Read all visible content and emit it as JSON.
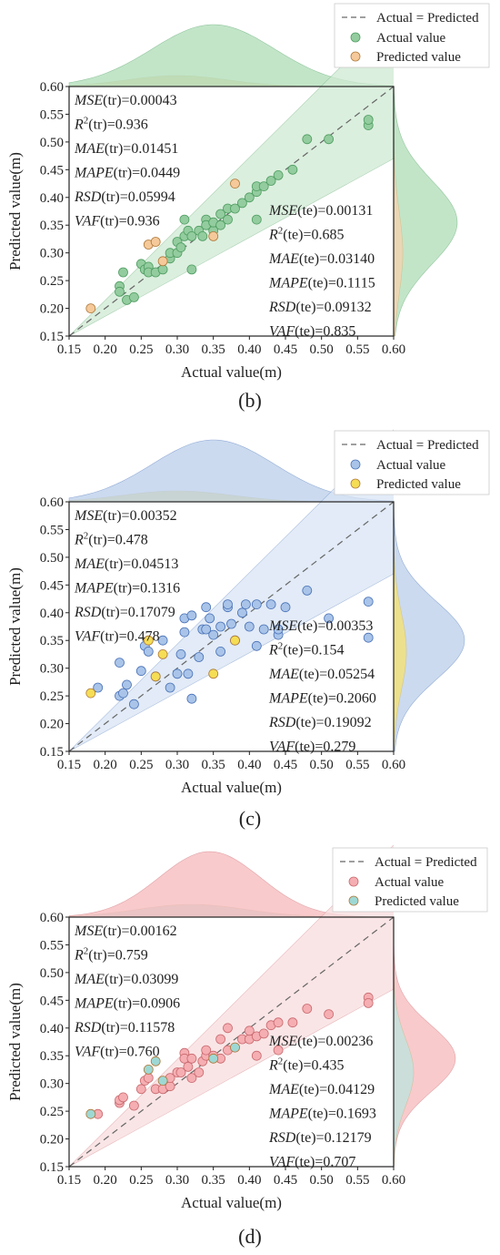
{
  "chart_data": [
    {
      "panel": "(b)",
      "type": "scatter",
      "xlabel": "Actual value(m)",
      "ylabel": "Predicted value(m)",
      "xlim": [
        0.15,
        0.6
      ],
      "ylim": [
        0.15,
        0.6
      ],
      "ticks": [
        "0.15",
        "0.20",
        "0.25",
        "0.30",
        "0.35",
        "0.40",
        "0.45",
        "0.50",
        "0.55",
        "0.60"
      ],
      "legend": {
        "placement": "top-right",
        "line": "Actual = Predicted",
        "s1": "Actual value",
        "s2": "Predicted value"
      },
      "colors": {
        "s1": "#93cc9e",
        "s2": "#f5c99a",
        "band": "#cfe9d3",
        "top1": "#aedcb5",
        "top2": "#f2d3b0",
        "side1": "#aedcb5",
        "side2": "#f2d3b0",
        "edge": "#4f9d62"
      },
      "metrics_tr": [
        "0.00043",
        "0.936",
        "0.01451",
        "0.0449",
        "0.05994",
        "0.936"
      ],
      "metrics_te": [
        "0.00131",
        "0.685",
        "0.03140",
        "0.1115",
        "0.09132",
        "0.835"
      ],
      "series": [
        {
          "name": "Actual value",
          "points": [
            [
              0.22,
              0.24
            ],
            [
              0.22,
              0.23
            ],
            [
              0.225,
              0.265
            ],
            [
              0.23,
              0.215
            ],
            [
              0.24,
              0.22
            ],
            [
              0.25,
              0.28
            ],
            [
              0.255,
              0.27
            ],
            [
              0.26,
              0.275
            ],
            [
              0.26,
              0.265
            ],
            [
              0.27,
              0.265
            ],
            [
              0.28,
              0.27
            ],
            [
              0.29,
              0.29
            ],
            [
              0.29,
              0.3
            ],
            [
              0.3,
              0.32
            ],
            [
              0.3,
              0.3
            ],
            [
              0.305,
              0.31
            ],
            [
              0.31,
              0.33
            ],
            [
              0.31,
              0.36
            ],
            [
              0.315,
              0.34
            ],
            [
              0.32,
              0.27
            ],
            [
              0.32,
              0.33
            ],
            [
              0.33,
              0.34
            ],
            [
              0.335,
              0.33
            ],
            [
              0.34,
              0.36
            ],
            [
              0.34,
              0.35
            ],
            [
              0.35,
              0.34
            ],
            [
              0.35,
              0.355
            ],
            [
              0.36,
              0.37
            ],
            [
              0.36,
              0.35
            ],
            [
              0.37,
              0.38
            ],
            [
              0.37,
              0.36
            ],
            [
              0.38,
              0.38
            ],
            [
              0.39,
              0.39
            ],
            [
              0.4,
              0.4
            ],
            [
              0.41,
              0.41
            ],
            [
              0.41,
              0.42
            ],
            [
              0.41,
              0.36
            ],
            [
              0.42,
              0.42
            ],
            [
              0.43,
              0.43
            ],
            [
              0.44,
              0.44
            ],
            [
              0.46,
              0.45
            ],
            [
              0.48,
              0.505
            ],
            [
              0.51,
              0.505
            ],
            [
              0.565,
              0.53
            ],
            [
              0.565,
              0.54
            ]
          ]
        },
        {
          "name": "Predicted value",
          "points": [
            [
              0.18,
              0.2
            ],
            [
              0.26,
              0.315
            ],
            [
              0.27,
              0.32
            ],
            [
              0.28,
              0.285
            ],
            [
              0.35,
              0.33
            ],
            [
              0.38,
              0.425
            ]
          ]
        }
      ],
      "density_top": {
        "mu1": 0.35,
        "sd1": 0.085,
        "mu2": 0.3,
        "sd2": 0.07,
        "peak1": 68,
        "peak2": 12
      },
      "density_side": {
        "mu1": 0.355,
        "sd1": 0.075,
        "mu2": 0.3,
        "sd2": 0.075,
        "peak1": 70,
        "peak2": 10
      }
    },
    {
      "panel": "(c)",
      "type": "scatter",
      "xlabel": "Actual value(m)",
      "ylabel": "Predicted value(m)",
      "xlim": [
        0.15,
        0.6
      ],
      "ylim": [
        0.15,
        0.6
      ],
      "ticks": [
        "0.15",
        "0.20",
        "0.25",
        "0.30",
        "0.35",
        "0.40",
        "0.45",
        "0.50",
        "0.55",
        "0.60"
      ],
      "legend": {
        "placement": "top-right",
        "line": "Actual = Predicted",
        "s1": "Actual value",
        "s2": "Predicted value"
      },
      "colors": {
        "s1": "#a9c4e8",
        "s2": "#f5dd55",
        "band": "#d8e4f4",
        "top1": "#b9cdea",
        "top2": "#f2e07a",
        "side1": "#b9cdea",
        "side2": "#f2e07a",
        "edge": "#4a72b8"
      },
      "metrics_tr": [
        "0.00352",
        "0.478",
        "0.04513",
        "0.1316",
        "0.17079",
        "0.478"
      ],
      "metrics_te": [
        "0.00353",
        "0.154",
        "0.05254",
        "0.2060",
        "0.19092",
        "0.279"
      ],
      "series": [
        {
          "name": "Actual value",
          "points": [
            [
              0.19,
              0.265
            ],
            [
              0.22,
              0.31
            ],
            [
              0.22,
              0.25
            ],
            [
              0.225,
              0.255
            ],
            [
              0.23,
              0.27
            ],
            [
              0.24,
              0.235
            ],
            [
              0.25,
              0.295
            ],
            [
              0.255,
              0.34
            ],
            [
              0.26,
              0.33
            ],
            [
              0.27,
              0.285
            ],
            [
              0.28,
              0.35
            ],
            [
              0.29,
              0.265
            ],
            [
              0.3,
              0.29
            ],
            [
              0.305,
              0.325
            ],
            [
              0.31,
              0.39
            ],
            [
              0.31,
              0.365
            ],
            [
              0.315,
              0.29
            ],
            [
              0.32,
              0.245
            ],
            [
              0.32,
              0.395
            ],
            [
              0.33,
              0.32
            ],
            [
              0.335,
              0.37
            ],
            [
              0.34,
              0.41
            ],
            [
              0.34,
              0.37
            ],
            [
              0.345,
              0.39
            ],
            [
              0.35,
              0.36
            ],
            [
              0.36,
              0.33
            ],
            [
              0.36,
              0.375
            ],
            [
              0.37,
              0.41
            ],
            [
              0.37,
              0.415
            ],
            [
              0.375,
              0.38
            ],
            [
              0.38,
              0.35
            ],
            [
              0.39,
              0.4
            ],
            [
              0.395,
              0.415
            ],
            [
              0.4,
              0.375
            ],
            [
              0.41,
              0.415
            ],
            [
              0.41,
              0.34
            ],
            [
              0.42,
              0.37
            ],
            [
              0.43,
              0.415
            ],
            [
              0.44,
              0.36
            ],
            [
              0.44,
              0.37
            ],
            [
              0.45,
              0.41
            ],
            [
              0.48,
              0.44
            ],
            [
              0.51,
              0.39
            ],
            [
              0.565,
              0.42
            ],
            [
              0.565,
              0.355
            ]
          ]
        },
        {
          "name": "Predicted value",
          "points": [
            [
              0.18,
              0.255
            ],
            [
              0.26,
              0.35
            ],
            [
              0.27,
              0.285
            ],
            [
              0.28,
              0.325
            ],
            [
              0.35,
              0.29
            ],
            [
              0.38,
              0.35
            ]
          ]
        }
      ],
      "density_top": {
        "mu1": 0.35,
        "sd1": 0.085,
        "mu2": 0.3,
        "sd2": 0.075,
        "peak1": 68,
        "peak2": 12
      },
      "density_side": {
        "mu1": 0.35,
        "sd1": 0.07,
        "mu2": 0.33,
        "sd2": 0.07,
        "peak1": 78,
        "peak2": 14
      }
    },
    {
      "panel": "(d)",
      "type": "scatter",
      "xlabel": "Actual value(m)",
      "ylabel": "Predicted value(m)",
      "xlim": [
        0.15,
        0.6
      ],
      "ylim": [
        0.15,
        0.6
      ],
      "ticks": [
        "0.15",
        "0.20",
        "0.25",
        "0.30",
        "0.35",
        "0.40",
        "0.45",
        "0.50",
        "0.55",
        "0.60"
      ],
      "legend": {
        "placement": "top-right",
        "line": "Actual = Predicted",
        "s1": "Actual value",
        "s2": "Predicted value"
      },
      "colors": {
        "s1": "#f5aeb2",
        "s2": "#9ed8d4",
        "band": "#f8dcdd",
        "top1": "#f6b8bb",
        "top2": "#c3e2dc",
        "side1": "#f6b8bb",
        "side2": "#c3e2dc",
        "edge": "#c86a6f"
      },
      "metrics_tr": [
        "0.00162",
        "0.759",
        "0.03099",
        "0.0906",
        "0.11578",
        "0.760"
      ],
      "metrics_te": [
        "0.00236",
        "0.435",
        "0.04129",
        "0.1693",
        "0.12179",
        "0.707"
      ],
      "series": [
        {
          "name": "Actual value",
          "points": [
            [
              0.19,
              0.245
            ],
            [
              0.22,
              0.265
            ],
            [
              0.22,
              0.27
            ],
            [
              0.225,
              0.275
            ],
            [
              0.24,
              0.26
            ],
            [
              0.25,
              0.29
            ],
            [
              0.255,
              0.305
            ],
            [
              0.26,
              0.31
            ],
            [
              0.27,
              0.29
            ],
            [
              0.28,
              0.29
            ],
            [
              0.29,
              0.295
            ],
            [
              0.29,
              0.31
            ],
            [
              0.3,
              0.32
            ],
            [
              0.305,
              0.32
            ],
            [
              0.31,
              0.355
            ],
            [
              0.31,
              0.345
            ],
            [
              0.315,
              0.33
            ],
            [
              0.32,
              0.31
            ],
            [
              0.32,
              0.345
            ],
            [
              0.33,
              0.32
            ],
            [
              0.335,
              0.34
            ],
            [
              0.34,
              0.35
            ],
            [
              0.34,
              0.36
            ],
            [
              0.35,
              0.35
            ],
            [
              0.36,
              0.345
            ],
            [
              0.36,
              0.38
            ],
            [
              0.37,
              0.36
            ],
            [
              0.37,
              0.4
            ],
            [
              0.38,
              0.365
            ],
            [
              0.39,
              0.38
            ],
            [
              0.4,
              0.38
            ],
            [
              0.4,
              0.395
            ],
            [
              0.41,
              0.385
            ],
            [
              0.41,
              0.35
            ],
            [
              0.42,
              0.39
            ],
            [
              0.43,
              0.405
            ],
            [
              0.44,
              0.36
            ],
            [
              0.44,
              0.41
            ],
            [
              0.46,
              0.41
            ],
            [
              0.48,
              0.435
            ],
            [
              0.51,
              0.425
            ],
            [
              0.565,
              0.455
            ],
            [
              0.565,
              0.445
            ]
          ]
        },
        {
          "name": "Predicted value",
          "points": [
            [
              0.18,
              0.245
            ],
            [
              0.26,
              0.325
            ],
            [
              0.27,
              0.34
            ],
            [
              0.28,
              0.305
            ],
            [
              0.35,
              0.345
            ],
            [
              0.38,
              0.365
            ]
          ]
        }
      ],
      "density_top": {
        "mu1": 0.345,
        "sd1": 0.07,
        "mu2": 0.32,
        "sd2": 0.075,
        "peak1": 72,
        "peak2": 14
      },
      "density_side": {
        "mu1": 0.345,
        "sd1": 0.06,
        "mu2": 0.32,
        "sd2": 0.06,
        "peak1": 68,
        "peak2": 22
      }
    }
  ]
}
